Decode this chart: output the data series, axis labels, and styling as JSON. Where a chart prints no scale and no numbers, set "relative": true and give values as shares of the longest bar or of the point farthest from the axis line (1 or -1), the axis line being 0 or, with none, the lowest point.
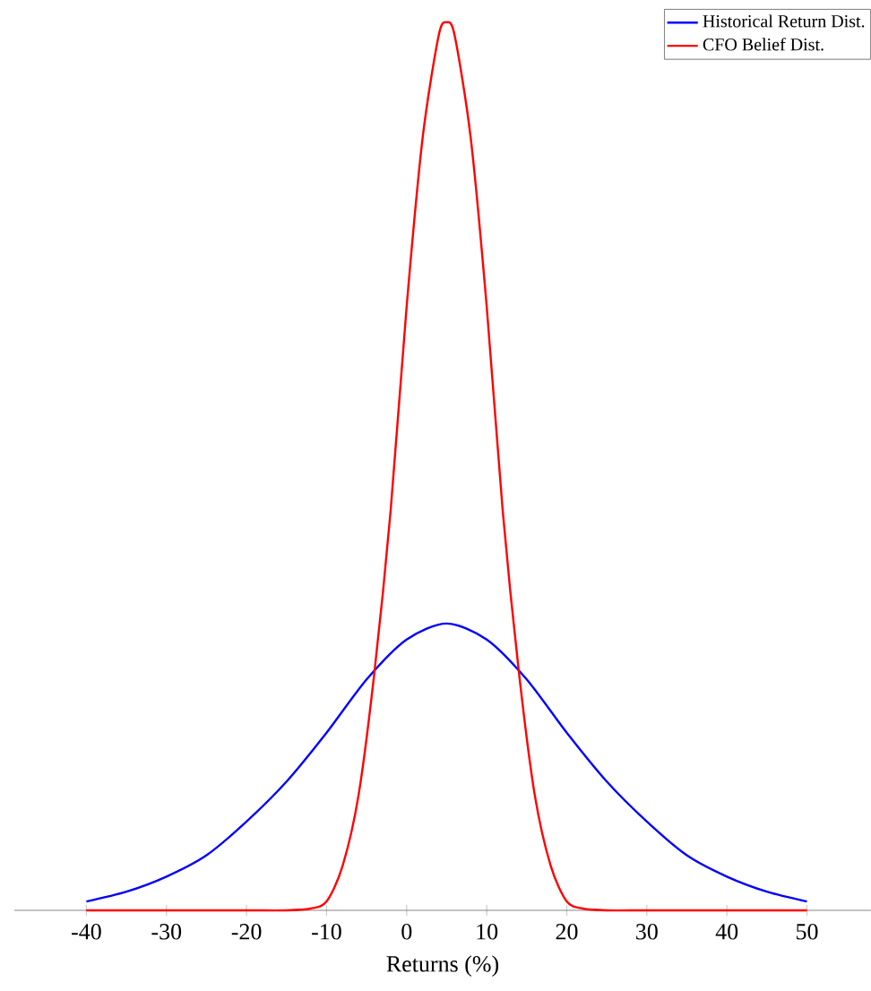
{
  "chart_data": {
    "type": "line",
    "relative": true,
    "xlabel": "Returns (%)",
    "xlim": [
      -49,
      58
    ],
    "xticks": [
      -40,
      -30,
      -20,
      -10,
      0,
      10,
      20,
      30,
      40,
      50
    ],
    "legend": "top right",
    "grid": false,
    "marker": "none",
    "line_style": "solid",
    "series": [
      {
        "name": "Historical Return Dist.",
        "color": "#0000ff",
        "x": [
          -40,
          -35,
          -30,
          -25,
          -20,
          -15,
          -10,
          -5,
          0,
          5,
          10,
          15,
          20,
          25,
          30,
          35,
          40,
          45,
          50
        ],
        "values": [
          0.01,
          0.021,
          0.038,
          0.062,
          0.1,
          0.145,
          0.2,
          0.26,
          0.305,
          0.323,
          0.305,
          0.26,
          0.2,
          0.145,
          0.1,
          0.062,
          0.038,
          0.021,
          0.01
        ]
      },
      {
        "name": "CFO Belief Dist.",
        "color": "#ff0000",
        "x": [
          -40,
          -30,
          -20,
          -15,
          -12,
          -10,
          -8,
          -6,
          -4,
          -2,
          0,
          2,
          4,
          5,
          6,
          8,
          10,
          12,
          14,
          16,
          18,
          20,
          22,
          25,
          30,
          40,
          50
        ],
        "values": [
          0,
          0,
          0,
          0,
          0.002,
          0.01,
          0.05,
          0.13,
          0.27,
          0.45,
          0.68,
          0.87,
          0.985,
          1,
          0.985,
          0.87,
          0.68,
          0.45,
          0.27,
          0.13,
          0.05,
          0.01,
          0.002,
          0,
          0,
          0,
          0
        ]
      }
    ]
  }
}
